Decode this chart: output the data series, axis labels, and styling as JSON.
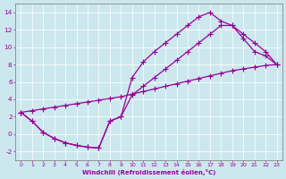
{
  "xlabel": "Windchill (Refroidissement éolien,°C)",
  "bg_color": "#cce8ee",
  "line_color": "#990099",
  "marker": "+",
  "markersize": 4,
  "linewidth": 0.9,
  "line1_x": [
    0,
    1,
    2,
    3,
    4,
    5,
    6,
    7,
    8,
    9,
    10,
    11,
    12,
    13,
    14,
    15,
    16,
    17,
    18,
    19,
    20,
    21,
    22,
    23
  ],
  "line1_y": [
    2.5,
    1.5,
    0.2,
    -0.5,
    -1.0,
    -1.3,
    -1.5,
    -1.6,
    1.5,
    2.0,
    6.5,
    8.3,
    9.5,
    10.5,
    11.5,
    12.5,
    13.5,
    14.0,
    13.0,
    12.5,
    11.0,
    9.5,
    9.0,
    8.0
  ],
  "line2_x": [
    0,
    1,
    2,
    3,
    4,
    5,
    6,
    7,
    8,
    9,
    10,
    11,
    12,
    13,
    14,
    15,
    16,
    17,
    18,
    19,
    20,
    21,
    22,
    23
  ],
  "line2_y": [
    2.5,
    1.5,
    0.2,
    -0.5,
    -1.0,
    -1.3,
    -1.5,
    -1.6,
    1.5,
    2.0,
    4.5,
    5.5,
    6.5,
    7.5,
    8.5,
    9.5,
    10.5,
    11.5,
    12.5,
    12.5,
    11.5,
    10.5,
    9.5,
    8.0
  ],
  "line3_x": [
    0,
    1,
    2,
    3,
    4,
    5,
    6,
    7,
    8,
    9,
    10,
    11,
    12,
    13,
    14,
    15,
    16,
    17,
    18,
    19,
    20,
    21,
    22,
    23
  ],
  "line3_y": [
    2.5,
    2.7,
    2.9,
    3.1,
    3.3,
    3.5,
    3.7,
    3.9,
    4.1,
    4.3,
    4.6,
    4.9,
    5.2,
    5.5,
    5.8,
    6.1,
    6.4,
    6.7,
    7.0,
    7.3,
    7.5,
    7.7,
    7.9,
    8.0
  ],
  "xlim": [
    0,
    23
  ],
  "ylim": [
    -3,
    15
  ],
  "yticks": [
    -2,
    0,
    2,
    4,
    6,
    8,
    10,
    12,
    14
  ],
  "xticks": [
    0,
    1,
    2,
    3,
    4,
    5,
    6,
    7,
    8,
    9,
    10,
    11,
    12,
    13,
    14,
    15,
    16,
    17,
    18,
    19,
    20,
    21,
    22,
    23
  ],
  "grid_color": "#b0d4dc",
  "tick_fontsize": 4.5,
  "xlabel_fontsize": 5.0
}
